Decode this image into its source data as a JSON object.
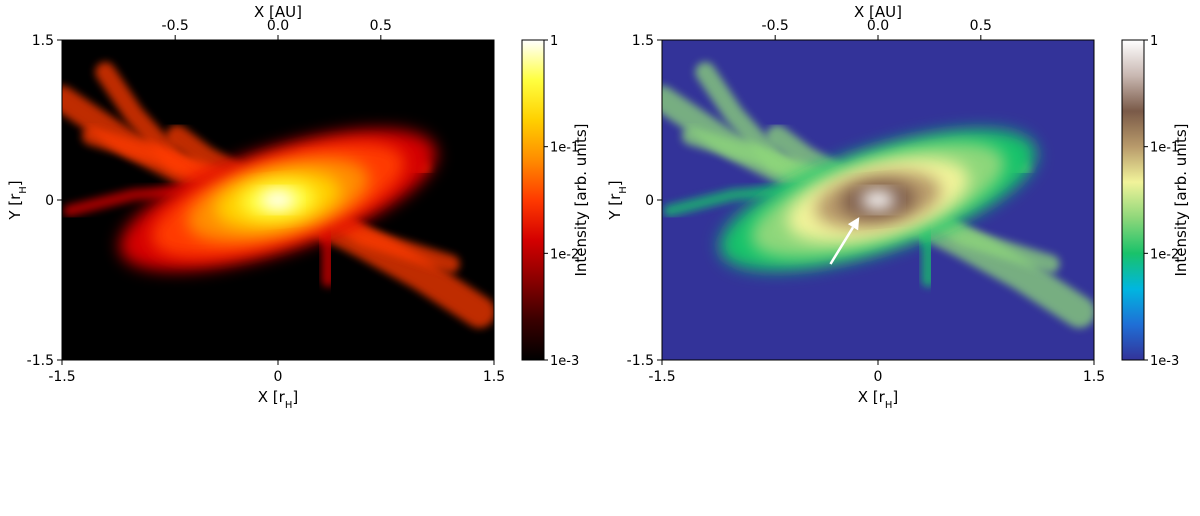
{
  "chart_data": [
    {
      "type": "heatmap",
      "panel": "left",
      "colormap": "hot",
      "cmap_stops": [
        "#000000",
        "#3a0000",
        "#8a0000",
        "#d40000",
        "#ff3a00",
        "#ff8c00",
        "#ffd000",
        "#ffff40",
        "#ffffff"
      ],
      "xlabel": "X [r_H]",
      "ylabel": "Y [r_H]",
      "top_xlabel": "X [AU]",
      "xlim": [
        -1.5,
        1.5
      ],
      "ylim": [
        -1.5,
        1.5
      ],
      "x_ticks": [
        "-1.5",
        "0",
        "1.5"
      ],
      "y_ticks": [
        "-1.5",
        "0",
        "1.5"
      ],
      "top_ticks": [
        {
          "value": -0.5,
          "label": "-0.5"
        },
        {
          "value": 0.0,
          "label": "0.0"
        },
        {
          "value": 0.5,
          "label": "0.5"
        }
      ],
      "colorbar": {
        "label": "Intensity [arb. units]",
        "scale": "log",
        "range": [
          0.001,
          1
        ],
        "tick_labels": [
          "1",
          "1e-1",
          "1e-2",
          "1e-3"
        ]
      }
    },
    {
      "type": "heatmap",
      "panel": "right",
      "colormap": "terrain",
      "cmap_stops": [
        "#333399",
        "#1f6fd6",
        "#00b6e0",
        "#19c26a",
        "#8ed77a",
        "#f1f39a",
        "#b89a6b",
        "#7a5a48",
        "#c9b8b2",
        "#ffffff"
      ],
      "xlabel": "X [r_H]",
      "ylabel": "Y [r_H]",
      "top_xlabel": "X [AU]",
      "xlim": [
        -1.5,
        1.5
      ],
      "ylim": [
        -1.5,
        1.5
      ],
      "x_ticks": [
        "-1.5",
        "0",
        "1.5"
      ],
      "y_ticks": [
        "-1.5",
        "0",
        "1.5"
      ],
      "top_ticks": [
        {
          "value": -0.5,
          "label": "-0.5"
        },
        {
          "value": 0.0,
          "label": "0.0"
        },
        {
          "value": 0.5,
          "label": "0.5"
        }
      ],
      "colorbar": {
        "label": "Intensity [arb. units]",
        "scale": "log",
        "range": [
          0.001,
          1
        ],
        "tick_labels": [
          "1",
          "1e-1",
          "1e-2",
          "1e-3"
        ]
      },
      "annotations": [
        {
          "type": "arrow",
          "from": [
            -0.33,
            -0.6
          ],
          "to": [
            -0.13,
            -0.16
          ]
        }
      ]
    }
  ]
}
